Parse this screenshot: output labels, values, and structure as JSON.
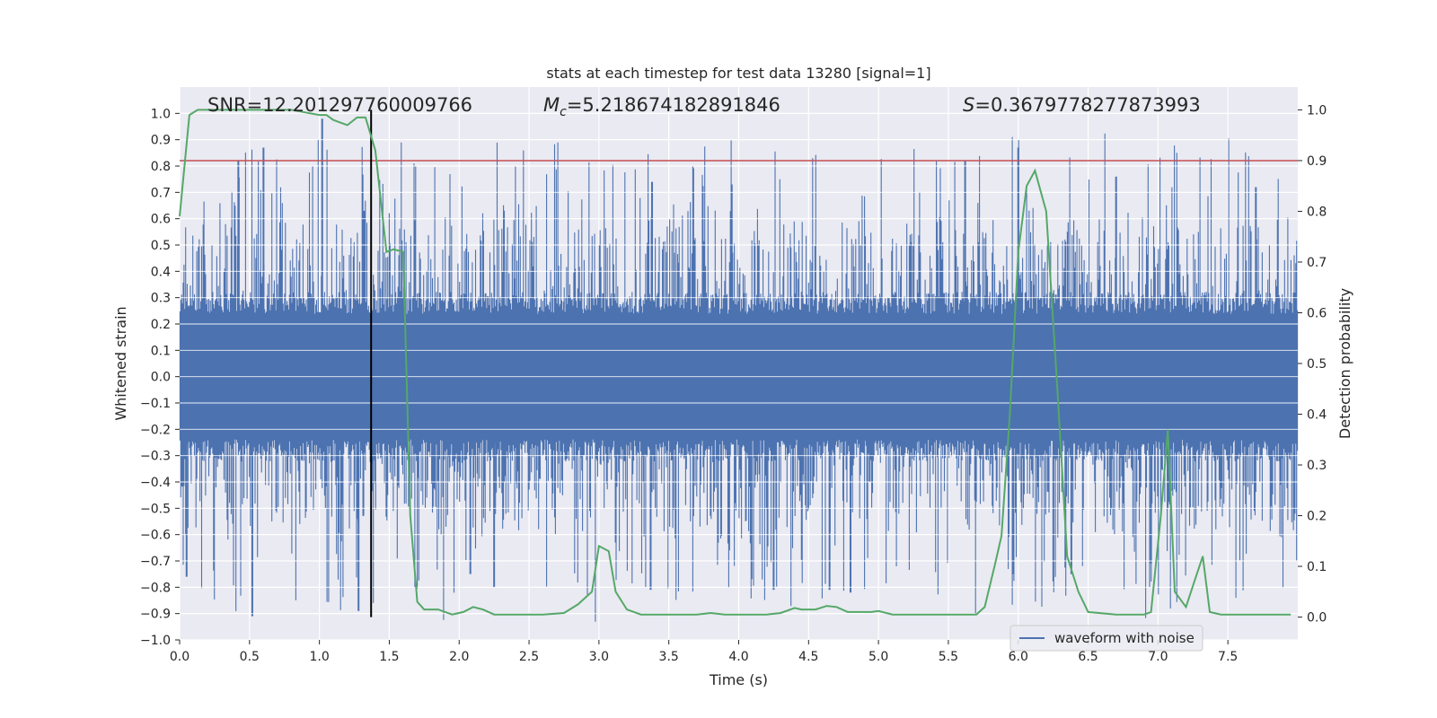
{
  "chart_data": {
    "type": "line",
    "title": "stats at each timestep for test data 13280 [signal=1]",
    "xlabel": "Time (s)",
    "ylabel": "Whitened strain",
    "y2label": "Detection probability",
    "xlim": [
      0.0,
      8.0
    ],
    "ylim": [
      -1.0,
      1.1
    ],
    "y2lim": [
      -0.045,
      1.045
    ],
    "xticks": [
      0.0,
      0.5,
      1.0,
      1.5,
      2.0,
      2.5,
      3.0,
      3.5,
      4.0,
      4.5,
      5.0,
      5.5,
      6.0,
      6.5,
      7.0,
      7.5
    ],
    "xtick_labels": [
      "0.0",
      "0.5",
      "1.0",
      "1.5",
      "2.0",
      "2.5",
      "3.0",
      "3.5",
      "4.0",
      "4.5",
      "5.0",
      "5.5",
      "6.0",
      "6.5",
      "7.0",
      "7.5"
    ],
    "yticks": [
      -1.0,
      -0.9,
      -0.8,
      -0.7,
      -0.6,
      -0.5,
      -0.4,
      -0.3,
      -0.2,
      -0.1,
      0.0,
      0.1,
      0.2,
      0.3,
      0.4,
      0.5,
      0.6,
      0.7,
      0.8,
      0.9,
      1.0
    ],
    "ytick_labels": [
      "−1.0",
      "−0.9",
      "−0.8",
      "−0.7",
      "−0.6",
      "−0.5",
      "−0.4",
      "−0.3",
      "−0.2",
      "−0.1",
      "0.0",
      "0.1",
      "0.2",
      "0.3",
      "0.4",
      "0.5",
      "0.6",
      "0.7",
      "0.8",
      "0.9",
      "1.0"
    ],
    "y2ticks": [
      0.0,
      0.1,
      0.2,
      0.3,
      0.4,
      0.5,
      0.6,
      0.7,
      0.8,
      0.9,
      1.0
    ],
    "y2tick_labels": [
      "0.0",
      "0.1",
      "0.2",
      "0.3",
      "0.4",
      "0.5",
      "0.6",
      "0.7",
      "0.8",
      "0.9",
      "1.0"
    ],
    "grid": true,
    "annotations": {
      "snr": "SNR=12.201297760009766",
      "mc_symbol": "M",
      "mc_sub": "c",
      "mc_value": "=5.218674182891846",
      "s_symbol": "S",
      "s_value": "=0.3679778277873993"
    },
    "vline_x": 1.37,
    "threshold_y2": 0.9,
    "waveform": {
      "name": "waveform with noise",
      "color": "#4c72b0",
      "typical_amplitude": 0.28,
      "peaks_pos": [
        [
          0.42,
          0.82
        ],
        [
          0.6,
          0.87
        ],
        [
          1.02,
          0.98
        ],
        [
          1.32,
          0.63
        ],
        [
          3.38,
          0.74
        ],
        [
          3.95,
          0.73
        ],
        [
          5.62,
          0.82
        ],
        [
          6.0,
          0.87
        ],
        [
          6.7,
          0.76
        ],
        [
          7.7,
          0.72
        ]
      ],
      "peaks_neg": [
        [
          0.05,
          -0.76
        ],
        [
          0.52,
          -0.91
        ],
        [
          1.28,
          -0.89
        ],
        [
          2.08,
          -0.75
        ],
        [
          2.25,
          -0.8
        ],
        [
          3.37,
          -0.81
        ],
        [
          4.25,
          -0.81
        ],
        [
          4.65,
          -0.81
        ],
        [
          4.8,
          -0.82
        ],
        [
          6.38,
          -0.75
        ],
        [
          6.95,
          -0.71
        ]
      ]
    },
    "probability": {
      "color": "#55a868",
      "x": [
        0.0,
        0.07,
        0.13,
        0.2,
        0.4,
        0.6,
        0.8,
        0.9,
        1.0,
        1.05,
        1.1,
        1.2,
        1.27,
        1.33,
        1.4,
        1.48,
        1.53,
        1.6,
        1.65,
        1.7,
        1.75,
        1.85,
        1.95,
        2.03,
        2.1,
        2.17,
        2.25,
        2.45,
        2.6,
        2.75,
        2.85,
        2.95,
        3.0,
        3.07,
        3.12,
        3.2,
        3.3,
        3.5,
        3.7,
        3.8,
        3.9,
        4.0,
        4.2,
        4.3,
        4.4,
        4.45,
        4.55,
        4.63,
        4.7,
        4.78,
        4.9,
        4.95,
        5.0,
        5.1,
        5.4,
        5.6,
        5.7,
        5.76,
        5.83,
        5.88,
        5.94,
        6.0,
        6.06,
        6.12,
        6.2,
        6.28,
        6.35,
        6.43,
        6.5,
        6.7,
        6.9,
        6.95,
        7.02,
        7.07,
        7.12,
        7.2,
        7.26,
        7.32,
        7.37,
        7.45,
        7.6,
        7.8,
        7.95
      ],
      "y": [
        0.79,
        0.99,
        1.0,
        1.0,
        1.0,
        1.0,
        1.0,
        0.995,
        0.99,
        0.99,
        0.98,
        0.97,
        0.985,
        0.985,
        0.92,
        0.72,
        0.725,
        0.72,
        0.2,
        0.03,
        0.015,
        0.015,
        0.005,
        0.01,
        0.02,
        0.015,
        0.005,
        0.005,
        0.005,
        0.008,
        0.025,
        0.05,
        0.14,
        0.13,
        0.05,
        0.015,
        0.005,
        0.005,
        0.005,
        0.008,
        0.005,
        0.005,
        0.005,
        0.008,
        0.018,
        0.015,
        0.015,
        0.022,
        0.02,
        0.01,
        0.01,
        0.01,
        0.012,
        0.005,
        0.005,
        0.005,
        0.005,
        0.02,
        0.1,
        0.16,
        0.4,
        0.72,
        0.85,
        0.88,
        0.8,
        0.45,
        0.12,
        0.05,
        0.01,
        0.005,
        0.005,
        0.01,
        0.2,
        0.37,
        0.05,
        0.02,
        0.07,
        0.12,
        0.01,
        0.005,
        0.005,
        0.005,
        0.005
      ]
    },
    "threshold_color": "#c44e52",
    "vline_color": "#000000",
    "legend": {
      "placement": "lower-right",
      "entries": [
        "waveform with noise"
      ]
    }
  }
}
